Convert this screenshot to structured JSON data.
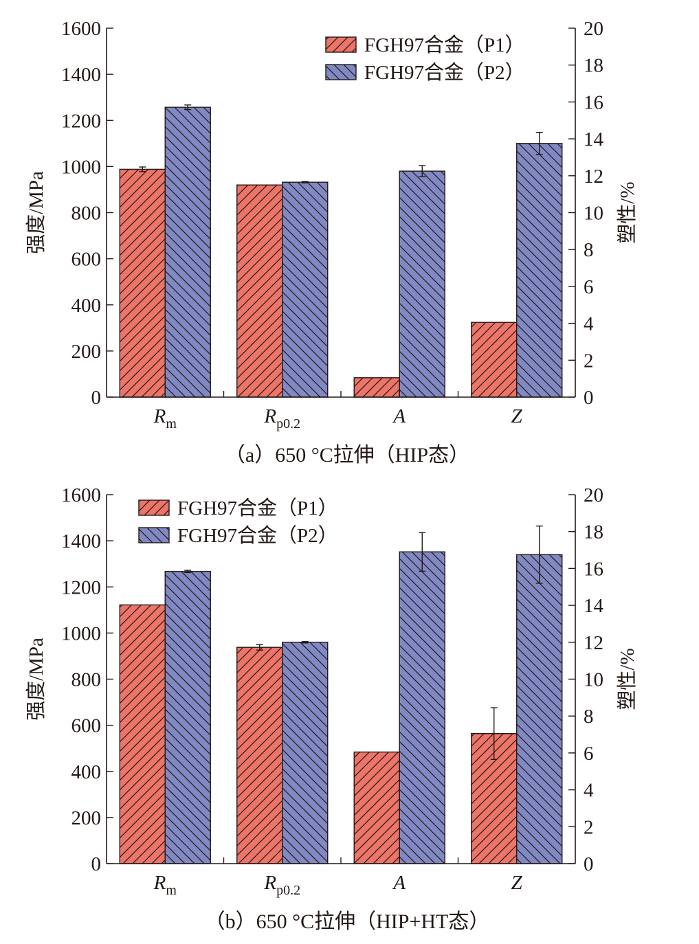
{
  "chart_data": [
    {
      "type": "bar",
      "title": "（a）650 °C拉伸（HIP态）",
      "categories": [
        {
          "main": "R",
          "sub": "m"
        },
        {
          "main": "R",
          "sub": "p0.2"
        },
        {
          "main": "A",
          "sub": ""
        },
        {
          "main": "Z",
          "sub": ""
        }
      ],
      "ylabel_left": "强度/MPa",
      "ylabel_right": "塑性/%",
      "ylim_left": [
        0,
        1600
      ],
      "ylim_right": [
        0,
        20
      ],
      "left_ticks": [
        0,
        200,
        400,
        600,
        800,
        1000,
        1200,
        1400,
        1600
      ],
      "right_ticks": [
        0,
        2,
        4,
        6,
        8,
        10,
        12,
        14,
        16,
        18,
        20
      ],
      "axis_for_category": [
        "left",
        "left",
        "right",
        "right"
      ],
      "legend_position": "top-right",
      "series": [
        {
          "name": "FGH97合金（P1）",
          "color": "#ec7468",
          "hatch": "forward",
          "values": [
            988,
            920,
            1.05,
            4.05
          ],
          "errors": [
            10,
            0,
            0,
            0
          ]
        },
        {
          "name": "FGH97合金（P2）",
          "color": "#8089c4",
          "hatch": "back",
          "values": [
            1257,
            932,
            12.25,
            13.75
          ],
          "errors": [
            10,
            3,
            0.3,
            0.6
          ]
        }
      ]
    },
    {
      "type": "bar",
      "title": "（b）650 °C拉伸（HIP+HT态）",
      "categories": [
        {
          "main": "R",
          "sub": "m"
        },
        {
          "main": "R",
          "sub": "p0.2"
        },
        {
          "main": "A",
          "sub": ""
        },
        {
          "main": "Z",
          "sub": ""
        }
      ],
      "ylabel_left": "强度/MPa",
      "ylabel_right": "塑性/%",
      "ylim_left": [
        0,
        1600
      ],
      "ylim_right": [
        0,
        20
      ],
      "left_ticks": [
        0,
        200,
        400,
        600,
        800,
        1000,
        1200,
        1400,
        1600
      ],
      "right_ticks": [
        0,
        2,
        4,
        6,
        8,
        10,
        12,
        14,
        16,
        18,
        20
      ],
      "axis_for_category": [
        "left",
        "left",
        "right",
        "right"
      ],
      "legend_position": "top-left",
      "series": [
        {
          "name": "FGH97合金（P1）",
          "color": "#ec7468",
          "hatch": "forward",
          "values": [
            1122,
            938,
            6.05,
            7.05
          ],
          "errors": [
            0,
            12,
            0,
            1.4
          ]
        },
        {
          "name": "FGH97合金（P2）",
          "color": "#8089c4",
          "hatch": "back",
          "values": [
            1267,
            960,
            16.9,
            16.75
          ],
          "errors": [
            5,
            3,
            1.05,
            1.55
          ]
        }
      ]
    }
  ]
}
